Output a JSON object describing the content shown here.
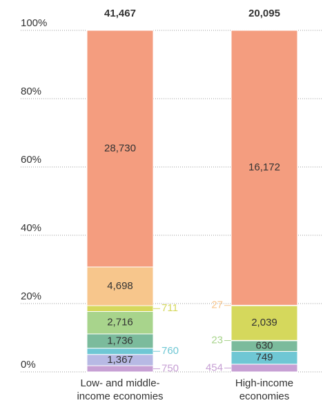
{
  "chart_data": {
    "type": "stacked_bar_100",
    "categories": [
      "Low- and middle-income economies",
      "High-income economies"
    ],
    "totals": [
      41467,
      20095
    ],
    "total_labels": [
      "41,467",
      "20,095"
    ],
    "series": [
      {
        "color": "#c7a0d4",
        "values": [
          750,
          454
        ],
        "value_labels": [
          "750",
          "454"
        ]
      },
      {
        "color": "#b7b9e4",
        "values": [
          1367,
          null
        ],
        "value_labels": [
          "1,367",
          null
        ]
      },
      {
        "color": "#6fc7d4",
        "values": [
          760,
          749
        ],
        "value_labels": [
          "760",
          "749"
        ]
      },
      {
        "color": "#7bbb9c",
        "values": [
          1736,
          630
        ],
        "value_labels": [
          "1,736",
          "630"
        ]
      },
      {
        "color": "#a8d48c",
        "values": [
          2716,
          23
        ],
        "value_labels": [
          "2,716",
          "23"
        ]
      },
      {
        "color": "#d5d85c",
        "values": [
          711,
          2039
        ],
        "value_labels": [
          "711",
          "2,039"
        ]
      },
      {
        "color": "#f7c68c",
        "values": [
          4698,
          27
        ],
        "value_labels": [
          "4,698",
          "27"
        ]
      },
      {
        "color": "#f49d7f",
        "values": [
          28730,
          16172
        ],
        "value_labels": [
          "28,730",
          "16,172"
        ]
      }
    ],
    "ylim": [
      0,
      100
    ],
    "yticks": [
      {
        "value": 0,
        "label": "0%"
      },
      {
        "value": 20,
        "label": "20%"
      },
      {
        "value": 40,
        "label": "40%"
      },
      {
        "value": 60,
        "label": "60%"
      },
      {
        "value": 80,
        "label": "80%"
      },
      {
        "value": 100,
        "label": "100%"
      }
    ],
    "grid": true
  }
}
